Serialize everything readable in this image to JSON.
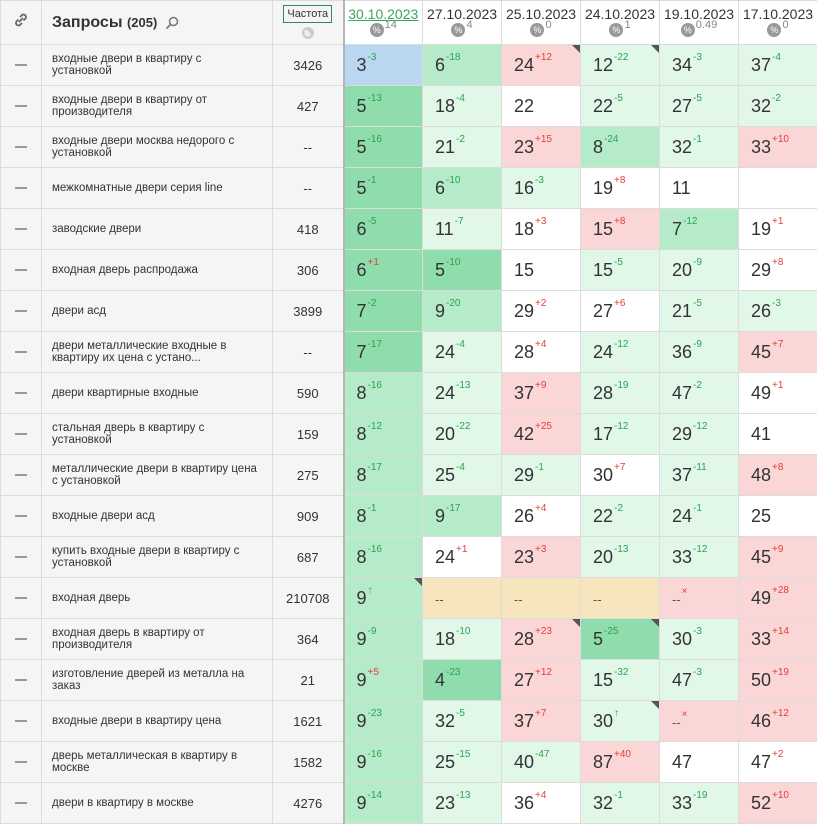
{
  "header": {
    "title": "Запросы",
    "count": "(205)",
    "freq_label": "Частота",
    "dates": [
      {
        "label": "30.10.2023",
        "pct": "14",
        "active": true
      },
      {
        "label": "27.10.2023",
        "pct": "4",
        "active": false
      },
      {
        "label": "25.10.2023",
        "pct": "0",
        "active": false
      },
      {
        "label": "24.10.2023",
        "pct": "1",
        "active": false
      },
      {
        "label": "19.10.2023",
        "pct": "0.49",
        "active": false
      },
      {
        "label": "17.10.2023",
        "pct": "0",
        "active": false
      }
    ]
  },
  "colors": {
    "accent": "#3aa65a",
    "up": "#2aa44f",
    "down": "#e0403a"
  },
  "rows": [
    {
      "query": "входные двери в квартиру с установкой",
      "freq": "3426",
      "cells": [
        {
          "v": "3",
          "d": "-3",
          "bg": "blue"
        },
        {
          "v": "6",
          "d": "-18",
          "bg": "g2"
        },
        {
          "v": "24",
          "d": "+12",
          "bg": "red",
          "corner": true
        },
        {
          "v": "12",
          "d": "-22",
          "bg": "g3",
          "corner": true
        },
        {
          "v": "34",
          "d": "-3",
          "bg": "g3"
        },
        {
          "v": "37",
          "d": "-4",
          "bg": "g3"
        }
      ]
    },
    {
      "query": "входные двери в квартиру от производителя",
      "freq": "427",
      "cells": [
        {
          "v": "5",
          "d": "-13",
          "bg": "g1"
        },
        {
          "v": "18",
          "d": "-4",
          "bg": "g3"
        },
        {
          "v": "22",
          "d": "",
          "bg": "white"
        },
        {
          "v": "22",
          "d": "-5",
          "bg": "g3"
        },
        {
          "v": "27",
          "d": "-5",
          "bg": "g3"
        },
        {
          "v": "32",
          "d": "-2",
          "bg": "g3"
        }
      ]
    },
    {
      "query": "входные двери москва недорого с установкой",
      "freq": "--",
      "cells": [
        {
          "v": "5",
          "d": "-16",
          "bg": "g1"
        },
        {
          "v": "21",
          "d": "-2",
          "bg": "g3"
        },
        {
          "v": "23",
          "d": "+15",
          "bg": "red"
        },
        {
          "v": "8",
          "d": "-24",
          "bg": "g2"
        },
        {
          "v": "32",
          "d": "-1",
          "bg": "g3"
        },
        {
          "v": "33",
          "d": "+10",
          "bg": "red"
        }
      ]
    },
    {
      "query": "межкомнатные двери серия line",
      "freq": "--",
      "cells": [
        {
          "v": "5",
          "d": "-1",
          "bg": "g1"
        },
        {
          "v": "6",
          "d": "-10",
          "bg": "g2"
        },
        {
          "v": "16",
          "d": "-3",
          "bg": "g3"
        },
        {
          "v": "19",
          "d": "+8",
          "bg": "white"
        },
        {
          "v": "11",
          "d": "",
          "bg": "white"
        },
        {
          "v": "",
          "d": "",
          "bg": "white"
        }
      ]
    },
    {
      "query": "заводские двери",
      "freq": "418",
      "cells": [
        {
          "v": "6",
          "d": "-5",
          "bg": "g1"
        },
        {
          "v": "11",
          "d": "-7",
          "bg": "g3"
        },
        {
          "v": "18",
          "d": "+3",
          "bg": "white"
        },
        {
          "v": "15",
          "d": "+8",
          "bg": "red"
        },
        {
          "v": "7",
          "d": "-12",
          "bg": "g2"
        },
        {
          "v": "19",
          "d": "+1",
          "bg": "white"
        }
      ]
    },
    {
      "query": "входная дверь распродажа",
      "freq": "306",
      "cells": [
        {
          "v": "6",
          "d": "+1",
          "bg": "g1"
        },
        {
          "v": "5",
          "d": "-10",
          "bg": "g1"
        },
        {
          "v": "15",
          "d": "",
          "bg": "white"
        },
        {
          "v": "15",
          "d": "-5",
          "bg": "g3"
        },
        {
          "v": "20",
          "d": "-9",
          "bg": "g3"
        },
        {
          "v": "29",
          "d": "+8",
          "bg": "white"
        }
      ]
    },
    {
      "query": "двери асд",
      "freq": "3899",
      "cells": [
        {
          "v": "7",
          "d": "-2",
          "bg": "g1"
        },
        {
          "v": "9",
          "d": "-20",
          "bg": "g2"
        },
        {
          "v": "29",
          "d": "+2",
          "bg": "white"
        },
        {
          "v": "27",
          "d": "+6",
          "bg": "white"
        },
        {
          "v": "21",
          "d": "-5",
          "bg": "g3"
        },
        {
          "v": "26",
          "d": "-3",
          "bg": "g3"
        }
      ]
    },
    {
      "query": "двери металлические входные в квартиру их цена с устано...",
      "freq": "--",
      "cells": [
        {
          "v": "7",
          "d": "-17",
          "bg": "g1"
        },
        {
          "v": "24",
          "d": "-4",
          "bg": "g3"
        },
        {
          "v": "28",
          "d": "+4",
          "bg": "white"
        },
        {
          "v": "24",
          "d": "-12",
          "bg": "g3"
        },
        {
          "v": "36",
          "d": "-9",
          "bg": "g3"
        },
        {
          "v": "45",
          "d": "+7",
          "bg": "red"
        }
      ]
    },
    {
      "query": "двери квартирные входные",
      "freq": "590",
      "cells": [
        {
          "v": "8",
          "d": "-16",
          "bg": "g2"
        },
        {
          "v": "24",
          "d": "-13",
          "bg": "g3"
        },
        {
          "v": "37",
          "d": "+9",
          "bg": "red"
        },
        {
          "v": "28",
          "d": "-19",
          "bg": "g3"
        },
        {
          "v": "47",
          "d": "-2",
          "bg": "g3"
        },
        {
          "v": "49",
          "d": "+1",
          "bg": "white"
        }
      ]
    },
    {
      "query": "стальная дверь в квартиру с установкой",
      "freq": "159",
      "cells": [
        {
          "v": "8",
          "d": "-12",
          "bg": "g2"
        },
        {
          "v": "20",
          "d": "-22",
          "bg": "g3"
        },
        {
          "v": "42",
          "d": "+25",
          "bg": "red"
        },
        {
          "v": "17",
          "d": "-12",
          "bg": "g3"
        },
        {
          "v": "29",
          "d": "-12",
          "bg": "g3"
        },
        {
          "v": "41",
          "d": "",
          "bg": "white"
        }
      ]
    },
    {
      "query": "металлические двери в квартиру цена с установкой",
      "freq": "275",
      "cells": [
        {
          "v": "8",
          "d": "-17",
          "bg": "g2"
        },
        {
          "v": "25",
          "d": "-4",
          "bg": "g3"
        },
        {
          "v": "29",
          "d": "-1",
          "bg": "g3"
        },
        {
          "v": "30",
          "d": "+7",
          "bg": "white"
        },
        {
          "v": "37",
          "d": "-11",
          "bg": "g3"
        },
        {
          "v": "48",
          "d": "+8",
          "bg": "red"
        }
      ]
    },
    {
      "query": "входные двери асд",
      "freq": "909",
      "cells": [
        {
          "v": "8",
          "d": "-1",
          "bg": "g2"
        },
        {
          "v": "9",
          "d": "-17",
          "bg": "g2"
        },
        {
          "v": "26",
          "d": "+4",
          "bg": "white"
        },
        {
          "v": "22",
          "d": "-2",
          "bg": "g3"
        },
        {
          "v": "24",
          "d": "-1",
          "bg": "g3"
        },
        {
          "v": "25",
          "d": "",
          "bg": "white"
        }
      ]
    },
    {
      "query": "купить входные двери в квартиру с установкой",
      "freq": "687",
      "cells": [
        {
          "v": "8",
          "d": "-16",
          "bg": "g2"
        },
        {
          "v": "24",
          "d": "+1",
          "bg": "white"
        },
        {
          "v": "23",
          "d": "+3",
          "bg": "red"
        },
        {
          "v": "20",
          "d": "-13",
          "bg": "g3"
        },
        {
          "v": "33",
          "d": "-12",
          "bg": "g3"
        },
        {
          "v": "45",
          "d": "+9",
          "bg": "red"
        }
      ]
    },
    {
      "query": "входная дверь",
      "freq": "210708",
      "cells": [
        {
          "v": "9",
          "d": "↑",
          "bg": "g2",
          "corner": true
        },
        {
          "v": "--",
          "d": "",
          "bg": "yellow",
          "nd": true
        },
        {
          "v": "--",
          "d": "",
          "bg": "yellow",
          "nd": true
        },
        {
          "v": "--",
          "d": "",
          "bg": "yellow",
          "nd": true
        },
        {
          "v": "--",
          "d": "×",
          "bg": "red",
          "nd": true,
          "ddown": true
        },
        {
          "v": "49",
          "d": "+28",
          "bg": "red"
        }
      ]
    },
    {
      "query": "входная дверь в квартиру от производителя",
      "freq": "364",
      "cells": [
        {
          "v": "9",
          "d": "-9",
          "bg": "g2"
        },
        {
          "v": "18",
          "d": "-10",
          "bg": "g3"
        },
        {
          "v": "28",
          "d": "+23",
          "bg": "red",
          "corner": true
        },
        {
          "v": "5",
          "d": "-25",
          "bg": "g1",
          "corner": true
        },
        {
          "v": "30",
          "d": "-3",
          "bg": "g3"
        },
        {
          "v": "33",
          "d": "+14",
          "bg": "red"
        }
      ]
    },
    {
      "query": "изготовление дверей из металла на заказ",
      "freq": "21",
      "cells": [
        {
          "v": "9",
          "d": "+5",
          "bg": "g2"
        },
        {
          "v": "4",
          "d": "-23",
          "bg": "g1"
        },
        {
          "v": "27",
          "d": "+12",
          "bg": "red"
        },
        {
          "v": "15",
          "d": "-32",
          "bg": "g3"
        },
        {
          "v": "47",
          "d": "-3",
          "bg": "g3"
        },
        {
          "v": "50",
          "d": "+19",
          "bg": "red"
        }
      ]
    },
    {
      "query": "входные двери в квартиру цена",
      "freq": "1621",
      "cells": [
        {
          "v": "9",
          "d": "-23",
          "bg": "g2"
        },
        {
          "v": "32",
          "d": "-5",
          "bg": "g3"
        },
        {
          "v": "37",
          "d": "+7",
          "bg": "red"
        },
        {
          "v": "30",
          "d": "↑",
          "bg": "g3",
          "corner": true
        },
        {
          "v": "--",
          "d": "×",
          "bg": "red",
          "nd": true,
          "ddown": true
        },
        {
          "v": "46",
          "d": "+12",
          "bg": "red"
        }
      ]
    },
    {
      "query": "дверь металлическая в квартиру в москве",
      "freq": "1582",
      "cells": [
        {
          "v": "9",
          "d": "-16",
          "bg": "g2"
        },
        {
          "v": "25",
          "d": "-15",
          "bg": "g3"
        },
        {
          "v": "40",
          "d": "-47",
          "bg": "g3"
        },
        {
          "v": "87",
          "d": "+40",
          "bg": "red"
        },
        {
          "v": "47",
          "d": "",
          "bg": "white"
        },
        {
          "v": "47",
          "d": "+2",
          "bg": "white"
        }
      ]
    },
    {
      "query": "двери в квартиру в москве",
      "freq": "4276",
      "cells": [
        {
          "v": "9",
          "d": "-14",
          "bg": "g2"
        },
        {
          "v": "23",
          "d": "-13",
          "bg": "g3"
        },
        {
          "v": "36",
          "d": "+4",
          "bg": "white"
        },
        {
          "v": "32",
          "d": "-1",
          "bg": "g3"
        },
        {
          "v": "33",
          "d": "-19",
          "bg": "g3"
        },
        {
          "v": "52",
          "d": "+10",
          "bg": "red"
        }
      ]
    }
  ]
}
